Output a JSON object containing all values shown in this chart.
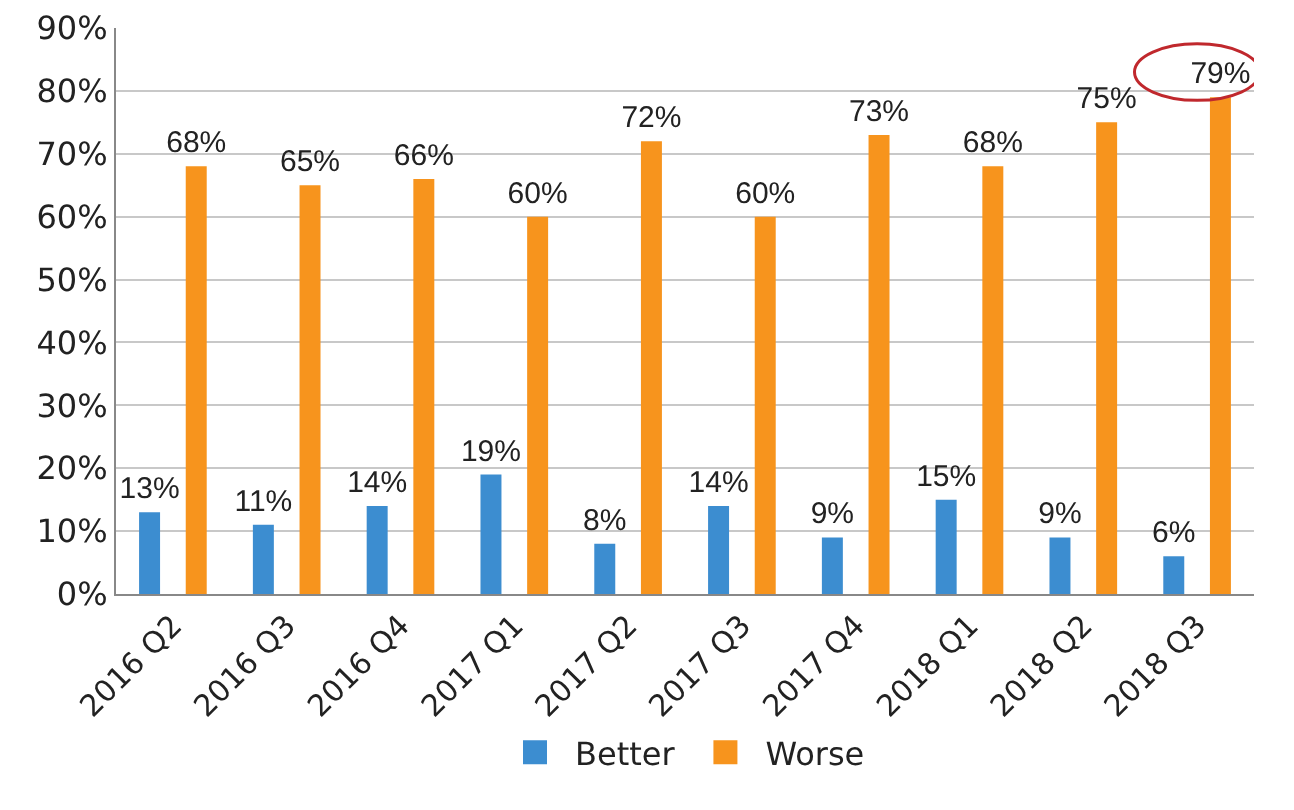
{
  "chart_data": {
    "type": "bar",
    "categories": [
      "2016 Q2",
      "2016 Q3",
      "2016 Q4",
      "2017 Q1",
      "2017 Q2",
      "2017 Q3",
      "2017 Q4",
      "2018 Q1",
      "2018 Q2",
      "2018 Q3"
    ],
    "series": [
      {
        "name": "Better",
        "color": "#3c8dd0",
        "values": [
          13,
          11,
          14,
          19,
          8,
          14,
          9,
          15,
          9,
          6
        ],
        "value_labels": [
          "13%",
          "11%",
          "14%",
          "19%",
          "8%",
          "14%",
          "9%",
          "15%",
          "9%",
          "6%"
        ]
      },
      {
        "name": "Worse",
        "color": "#f7941d",
        "values": [
          68,
          65,
          66,
          60,
          72,
          60,
          73,
          68,
          75,
          79
        ],
        "value_labels": [
          "68%",
          "65%",
          "66%",
          "60%",
          "72%",
          "60%",
          "73%",
          "68%",
          "75%",
          "79%"
        ]
      }
    ],
    "ylim": [
      0,
      90
    ],
    "yticks": [
      {
        "value": 0,
        "label": "0%"
      },
      {
        "value": 10,
        "label": "10%"
      },
      {
        "value": 20,
        "label": "20%"
      },
      {
        "value": 30,
        "label": "30%"
      },
      {
        "value": 40,
        "label": "40%"
      },
      {
        "value": 50,
        "label": "50%"
      },
      {
        "value": 60,
        "label": "60%"
      },
      {
        "value": 70,
        "label": "70%"
      },
      {
        "value": 80,
        "label": "80%"
      },
      {
        "value": 90,
        "label": "90%"
      }
    ],
    "grid": "y",
    "legend": "bottom"
  }
}
